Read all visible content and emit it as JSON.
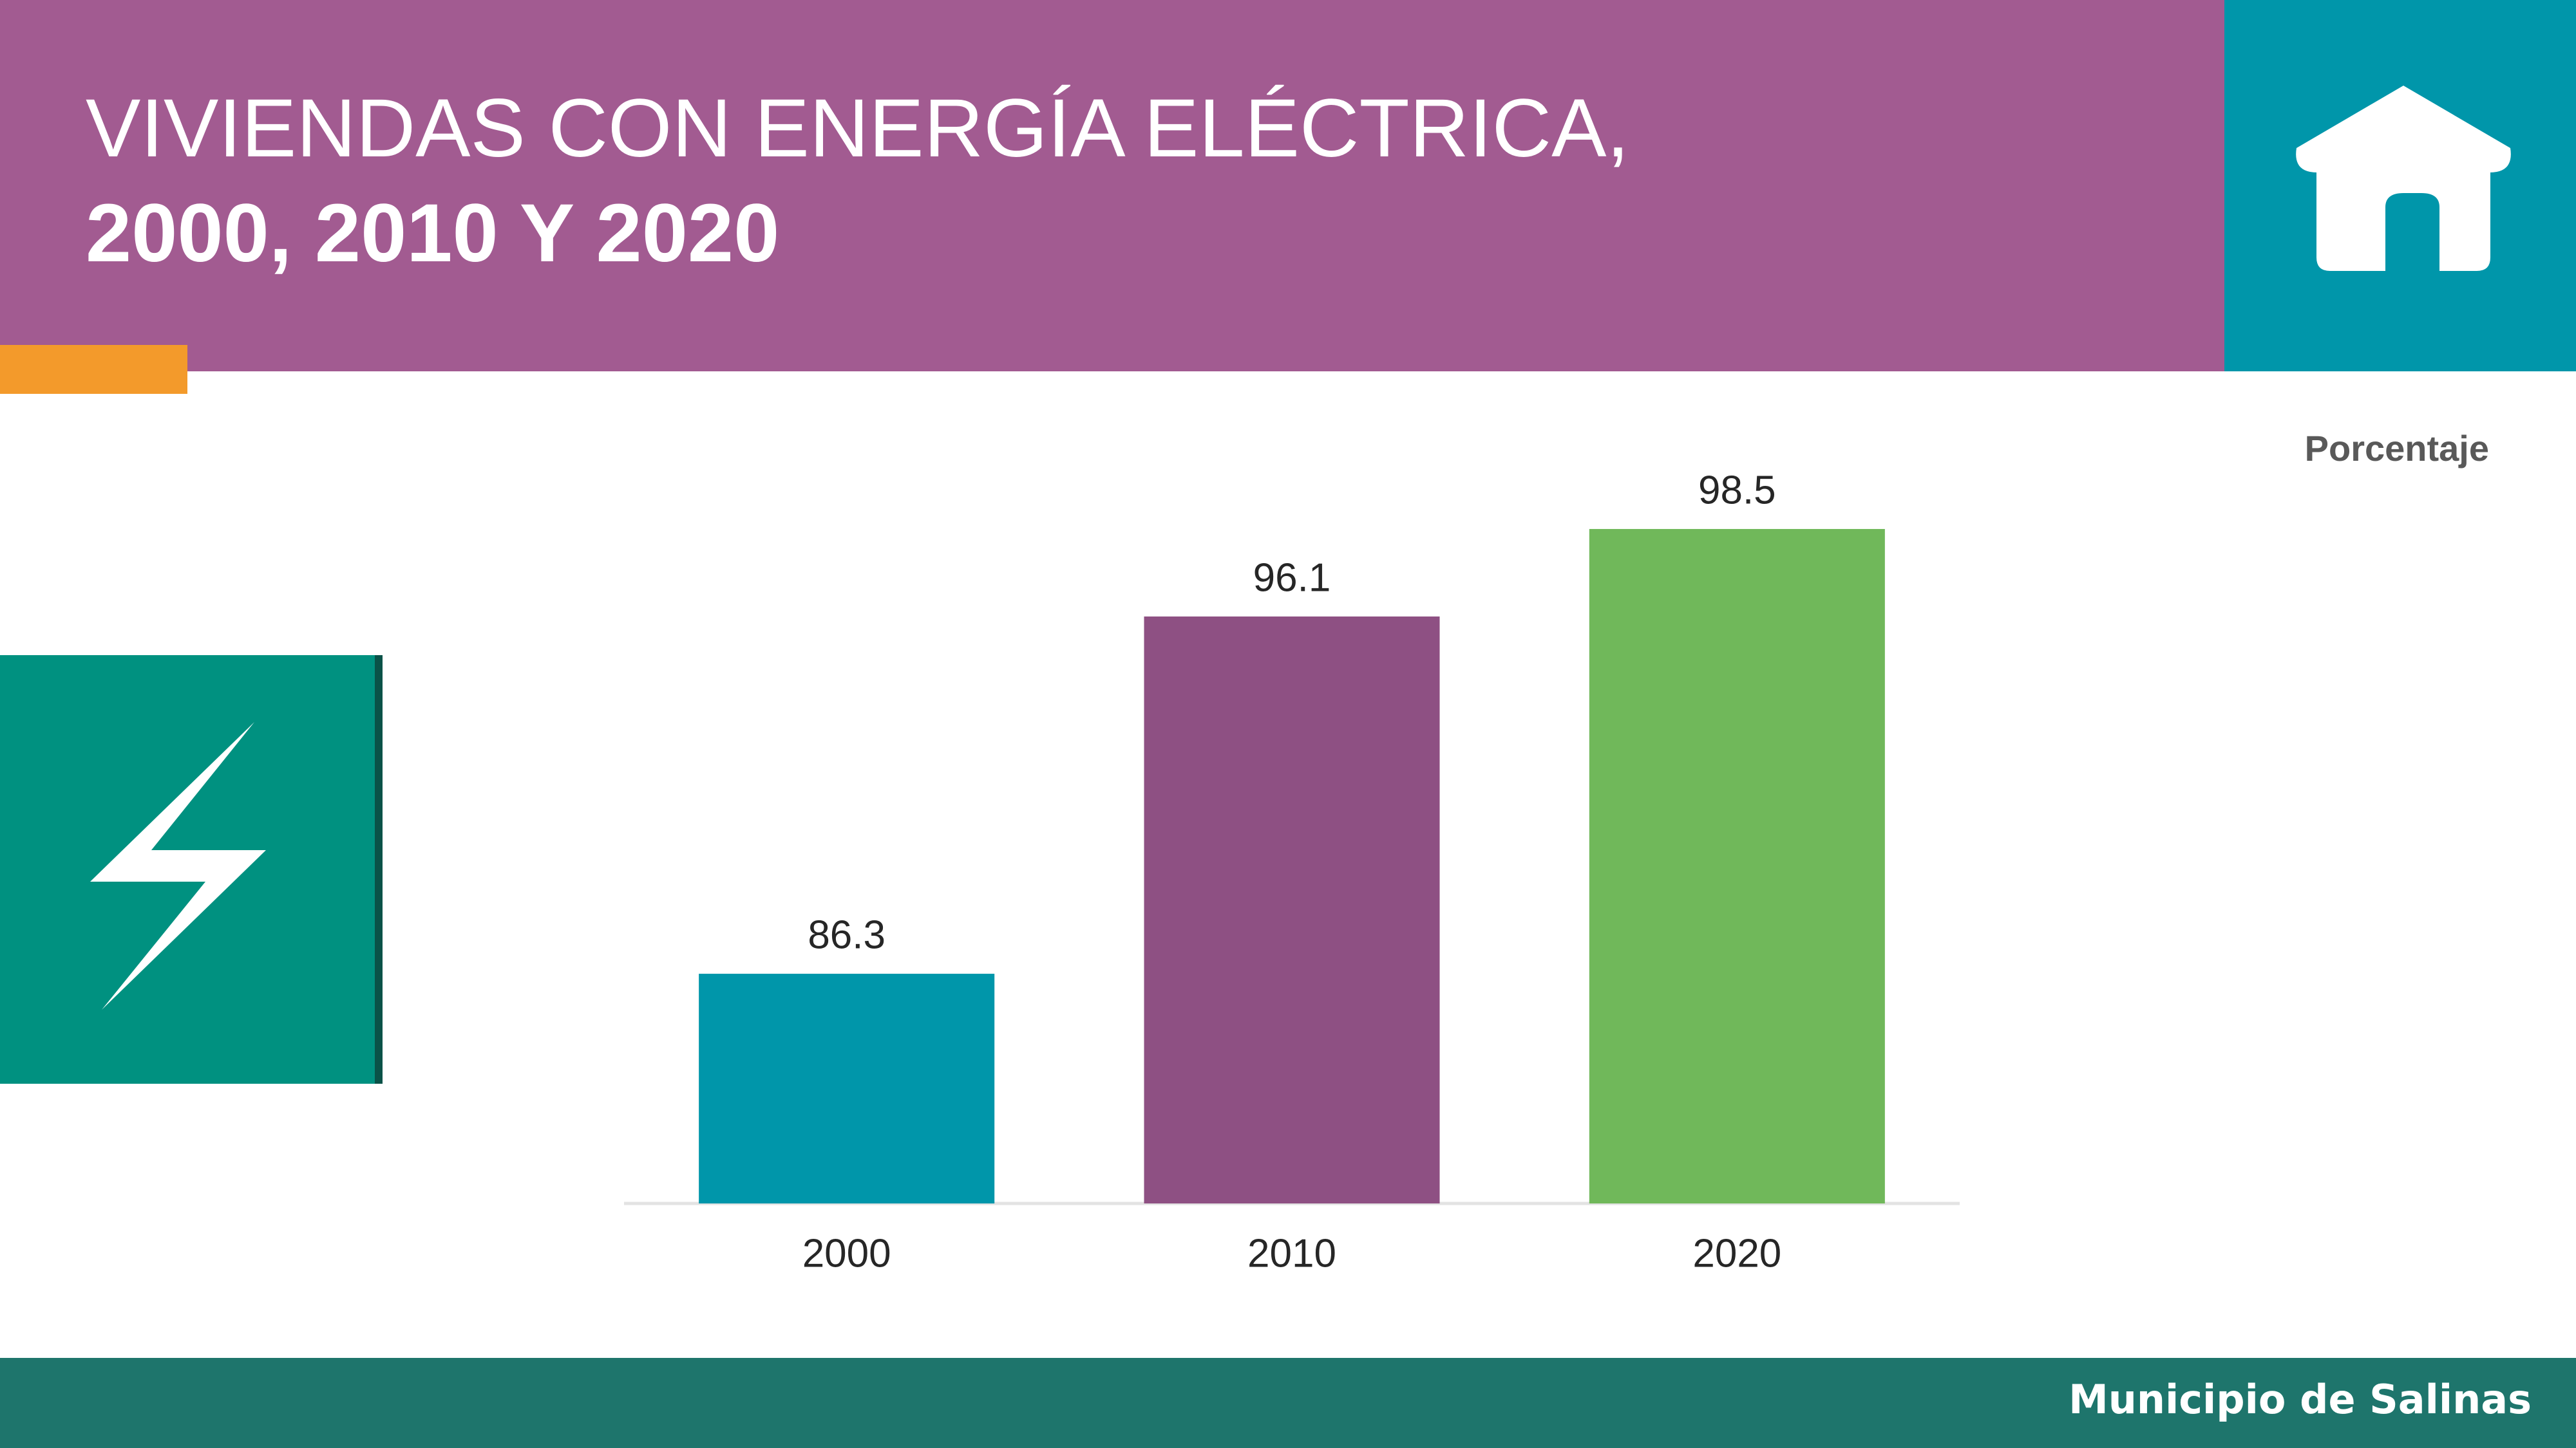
{
  "chart_data": {
    "type": "bar",
    "title": [
      "VIVIENDAS CON ENERGÍA ELÉCTRICA,",
      "2000, 2010 Y 2020"
    ],
    "y_label": "Porcentaje",
    "categories": [
      "2000",
      "2010",
      "2020"
    ],
    "values": [
      86.3,
      96.1,
      98.5
    ],
    "colors": [
      "#0096aa",
      "#8e5083",
      "#70b85a"
    ],
    "ylim": [
      80,
      100
    ]
  },
  "footer": "Municipio de Salinas"
}
